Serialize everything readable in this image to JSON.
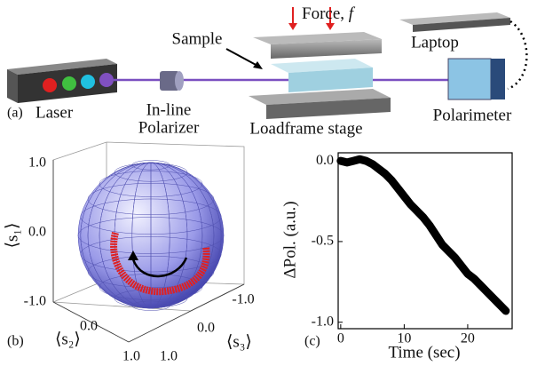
{
  "panel_a": {
    "panel_label": "(a)",
    "force_text": "Force, ",
    "force_symbol": "f",
    "sample": "Sample",
    "laptop": "Laptop",
    "laser": "Laser",
    "polarizer_line1": "In-line",
    "polarizer_line2": "Polarizer",
    "stage": "Loadframe stage",
    "polarimeter": "Polarimeter"
  },
  "panel_b": {
    "panel_label": "(b)",
    "s1_label": "⟨s₁⟩",
    "s2_label": "⟨s₂⟩",
    "s3_label": "⟨s₃⟩",
    "s1_ticks": [
      {
        "value": 1,
        "label": "1.0"
      },
      {
        "value": 0,
        "label": "0.0"
      },
      {
        "value": -1,
        "label": "-1.0"
      }
    ],
    "s2_ticks": [
      {
        "value": 0,
        "label": "0.0"
      },
      {
        "value": 1,
        "label": "1.0"
      }
    ],
    "s3_ticks": [
      {
        "value": -1,
        "label": "-1.0"
      },
      {
        "value": 0,
        "label": "0.0"
      },
      {
        "value": 1,
        "label": "1.0"
      }
    ]
  },
  "chart_data": {
    "type": "line",
    "panel_label": "(c)",
    "xlabel": "Time (sec)",
    "ylabel": "ΔPol. (a.u.)",
    "color": "#000000",
    "x": [
      0,
      1,
      2,
      3,
      4,
      5,
      6,
      7,
      8,
      9,
      10,
      11,
      12,
      13,
      14,
      15,
      16,
      17,
      18,
      19,
      20,
      21,
      22,
      23,
      24,
      25,
      26
    ],
    "values": [
      0.0,
      -0.01,
      0.0,
      0.01,
      0.0,
      -0.02,
      -0.05,
      -0.08,
      -0.12,
      -0.17,
      -0.22,
      -0.27,
      -0.31,
      -0.35,
      -0.4,
      -0.46,
      -0.52,
      -0.56,
      -0.6,
      -0.65,
      -0.7,
      -0.73,
      -0.77,
      -0.81,
      -0.85,
      -0.89,
      -0.93
    ],
    "xlim": [
      -0.4,
      27
    ],
    "ylim": [
      -1.04,
      0.05
    ],
    "xticks": [
      0,
      10,
      20
    ],
    "yticks": [
      {
        "value": 0,
        "label": "0.0"
      },
      -0.5,
      {
        "value": -1,
        "label": "-1.0"
      }
    ]
  }
}
